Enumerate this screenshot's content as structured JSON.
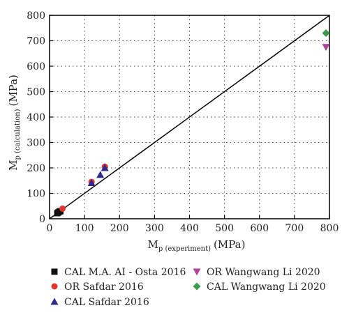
{
  "chart_data": {
    "type": "scatter",
    "xlabel": {
      "main": "M",
      "sub": "p (experiment)",
      "unit": "(MPa)"
    },
    "ylabel": {
      "main": "M",
      "sub": "p (calculation)",
      "unit": "(MPa)"
    },
    "xlim": [
      0,
      800
    ],
    "ylim": [
      0,
      800
    ],
    "xticks": [
      "0",
      "100",
      "200",
      "300",
      "400",
      "500",
      "600",
      "700",
      "800"
    ],
    "yticks": [
      "0",
      "100",
      "200",
      "300",
      "400",
      "500",
      "600",
      "700",
      "800"
    ],
    "grid": "dotted",
    "reference_line": {
      "from": [
        0,
        0
      ],
      "to": [
        800,
        800
      ]
    },
    "legend_position": "bottom",
    "series": [
      {
        "name": "CAL M.A. AI - Osta 2016",
        "marker": "square",
        "color": "#111111",
        "points": [
          [
            22,
            22
          ],
          [
            25,
            25
          ],
          [
            28,
            28
          ],
          [
            31,
            30
          ]
        ]
      },
      {
        "name": "OR Safdar 2016",
        "marker": "circle",
        "color": "#e0352b",
        "points": [
          [
            37,
            40
          ],
          [
            120,
            145
          ],
          [
            158,
            205
          ]
        ]
      },
      {
        "name": "CAL Safdar 2016",
        "marker": "triangle-up",
        "color": "#2d2a8c",
        "points": [
          [
            120,
            141
          ],
          [
            145,
            173
          ],
          [
            158,
            200
          ]
        ]
      },
      {
        "name": "OR Wangwang Li 2020",
        "marker": "triangle-down",
        "color": "#b0439a",
        "points": [
          [
            790,
            675
          ]
        ]
      },
      {
        "name": "CAL Wangwang Li 2020",
        "marker": "diamond",
        "color": "#3c9a4c",
        "points": [
          [
            790,
            730
          ]
        ]
      }
    ]
  }
}
